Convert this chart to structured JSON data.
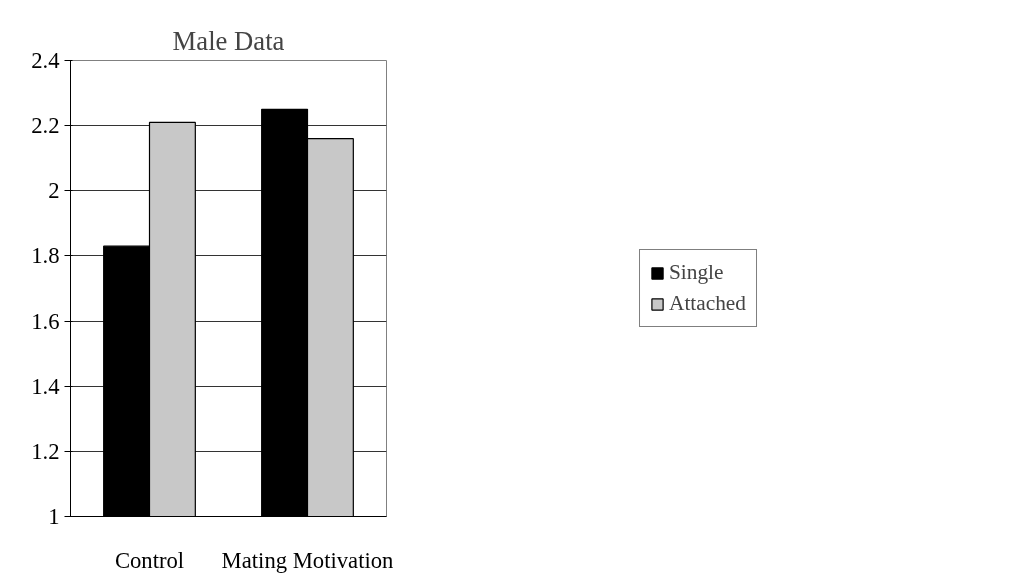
{
  "chart_data": {
    "type": "bar",
    "title": "Male Data",
    "categories": [
      "Control",
      "Mating Motivation"
    ],
    "series": [
      {
        "name": "Single",
        "color": "#000000",
        "values": [
          1.83,
          2.25
        ]
      },
      {
        "name": "Attached",
        "color": "#c8c8c8",
        "values": [
          2.21,
          2.16
        ]
      }
    ],
    "ylim": [
      1,
      2.4
    ],
    "yticks": [
      1,
      1.2,
      1.4,
      1.6,
      1.8,
      2,
      2.2,
      2.4
    ],
    "grid": "y",
    "legend": "right"
  }
}
